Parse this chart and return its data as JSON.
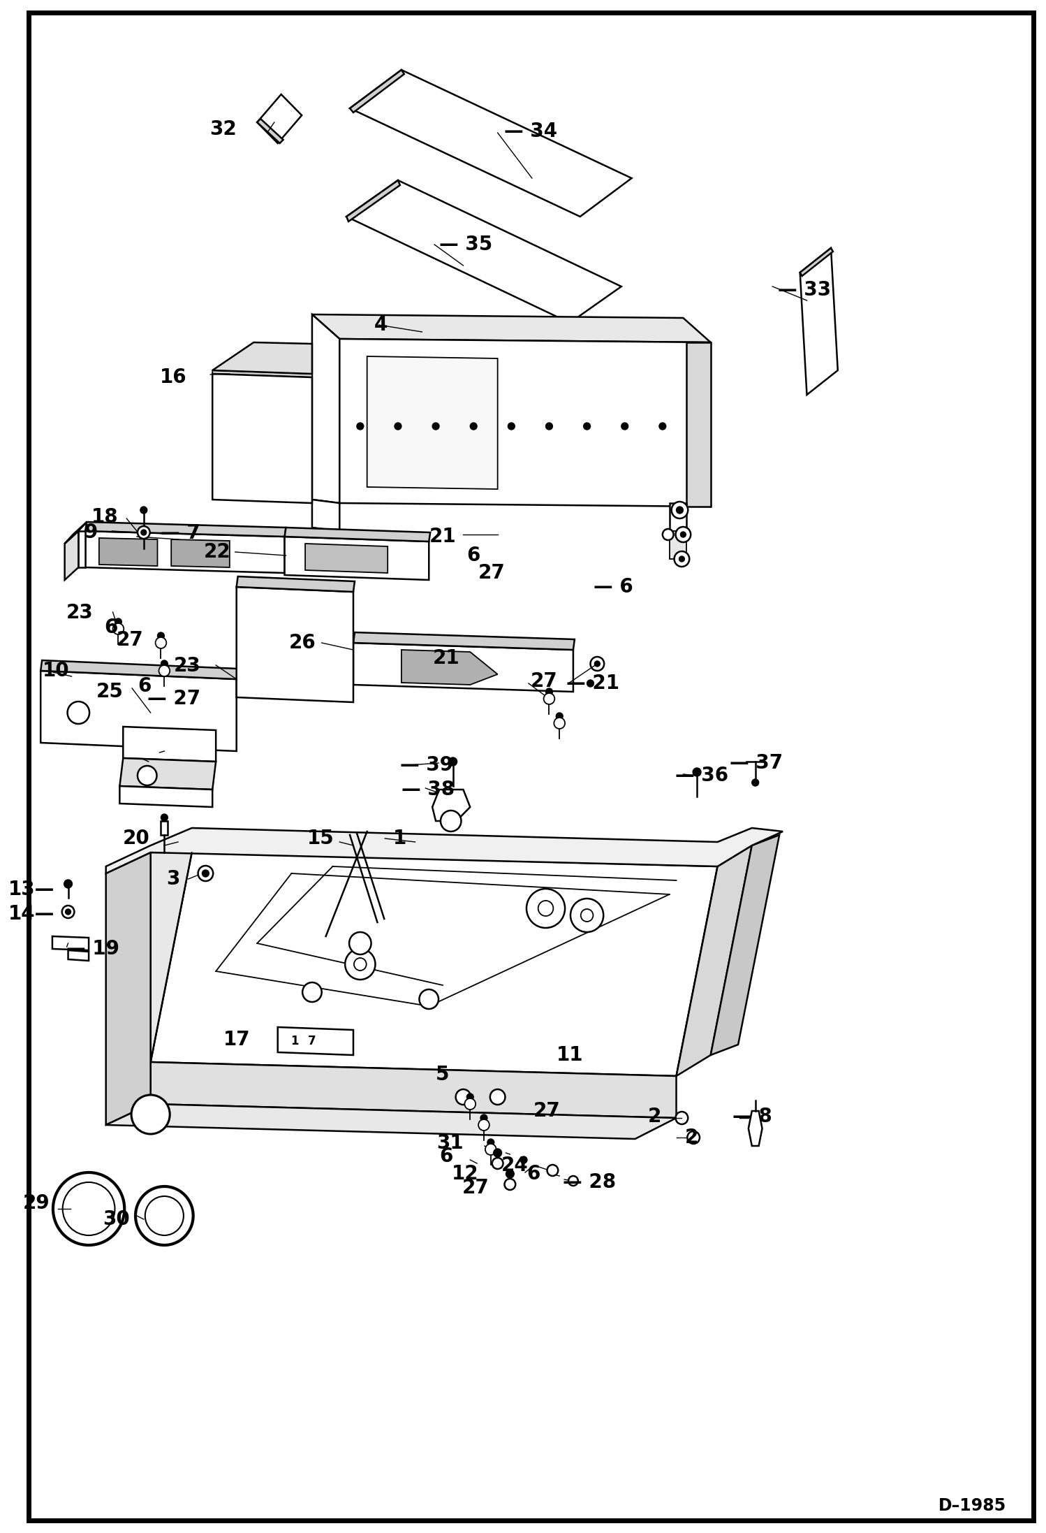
{
  "bg_color": "#ffffff",
  "fig_width": 14.98,
  "fig_height": 21.94,
  "dpi": 100,
  "diagram_id": "D–1985"
}
